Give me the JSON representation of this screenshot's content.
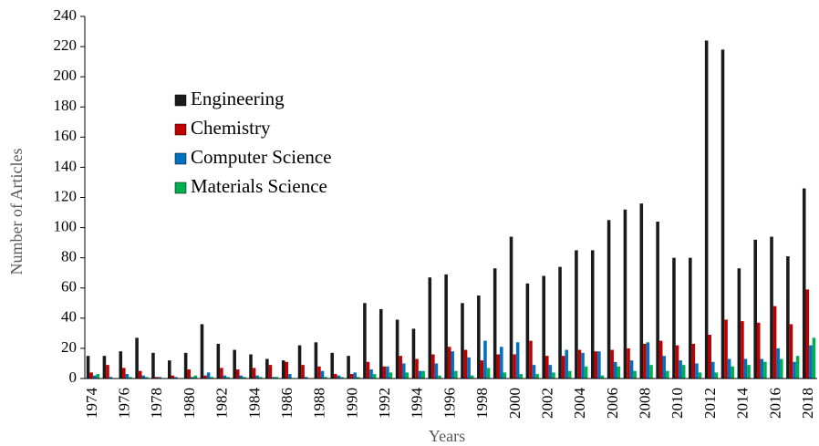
{
  "chart_data": {
    "type": "bar",
    "x_label": "Years",
    "y_label": "Number of Articles",
    "categories": [
      "1974",
      null,
      "1976",
      null,
      "1978",
      null,
      "1980",
      null,
      "1982",
      null,
      "1984",
      null,
      "1986",
      null,
      "1988",
      null,
      "1990",
      null,
      "1992",
      null,
      "1994",
      null,
      "1996",
      null,
      "1998",
      null,
      "2000",
      null,
      "2002",
      null,
      "2004",
      null,
      "2006",
      null,
      "2008",
      null,
      "2010",
      null,
      "2012",
      null,
      "2014",
      null,
      "2016",
      null,
      "2018"
    ],
    "series": [
      {
        "name": "Engineering",
        "color": "#1a1a1a",
        "values": [
          15,
          15,
          18,
          27,
          17,
          12,
          17,
          36,
          23,
          19,
          16,
          13,
          12,
          22,
          24,
          17,
          15,
          50,
          46,
          39,
          33,
          67,
          69,
          50,
          55,
          73,
          94,
          63,
          68,
          74,
          85,
          85,
          105,
          112,
          116,
          104,
          80,
          80,
          224,
          218,
          73,
          92,
          94,
          81,
          126
        ]
      },
      {
        "name": "Chemistry",
        "color": "#c00000",
        "values": [
          4,
          9,
          7,
          5,
          1,
          2,
          6,
          2,
          7,
          6,
          7,
          9,
          11,
          9,
          8,
          3,
          3,
          11,
          8,
          15,
          13,
          16,
          21,
          19,
          12,
          16,
          16,
          25,
          15,
          15,
          19,
          18,
          19,
          20,
          23,
          25,
          22,
          23,
          29,
          39,
          38,
          37,
          48,
          36,
          59
        ]
      },
      {
        "name": "Computer Science",
        "color": "#0070c0",
        "values": [
          2,
          1,
          3,
          2,
          1,
          1,
          1,
          4,
          2,
          2,
          2,
          1,
          3,
          1,
          5,
          2,
          4,
          6,
          8,
          10,
          5,
          10,
          18,
          14,
          25,
          21,
          24,
          9,
          9,
          19,
          17,
          18,
          11,
          12,
          24,
          15,
          12,
          10,
          11,
          13,
          13,
          13,
          20,
          11,
          22
        ]
      },
      {
        "name": "Materials Science",
        "color": "#00b050",
        "values": [
          3,
          0,
          1,
          1,
          0,
          0,
          2,
          1,
          1,
          1,
          1,
          1,
          0,
          0,
          1,
          1,
          1,
          3,
          4,
          4,
          5,
          2,
          5,
          2,
          7,
          4,
          3,
          3,
          4,
          5,
          8,
          2,
          8,
          5,
          9,
          5,
          9,
          4,
          4,
          8,
          9,
          11,
          13,
          15,
          27
        ]
      }
    ],
    "ylim": [
      0,
      240
    ],
    "yticks": [
      0,
      20,
      40,
      60,
      80,
      100,
      120,
      140,
      160,
      180,
      200,
      220,
      240
    ],
    "legend": "upper-left",
    "grid": false
  }
}
